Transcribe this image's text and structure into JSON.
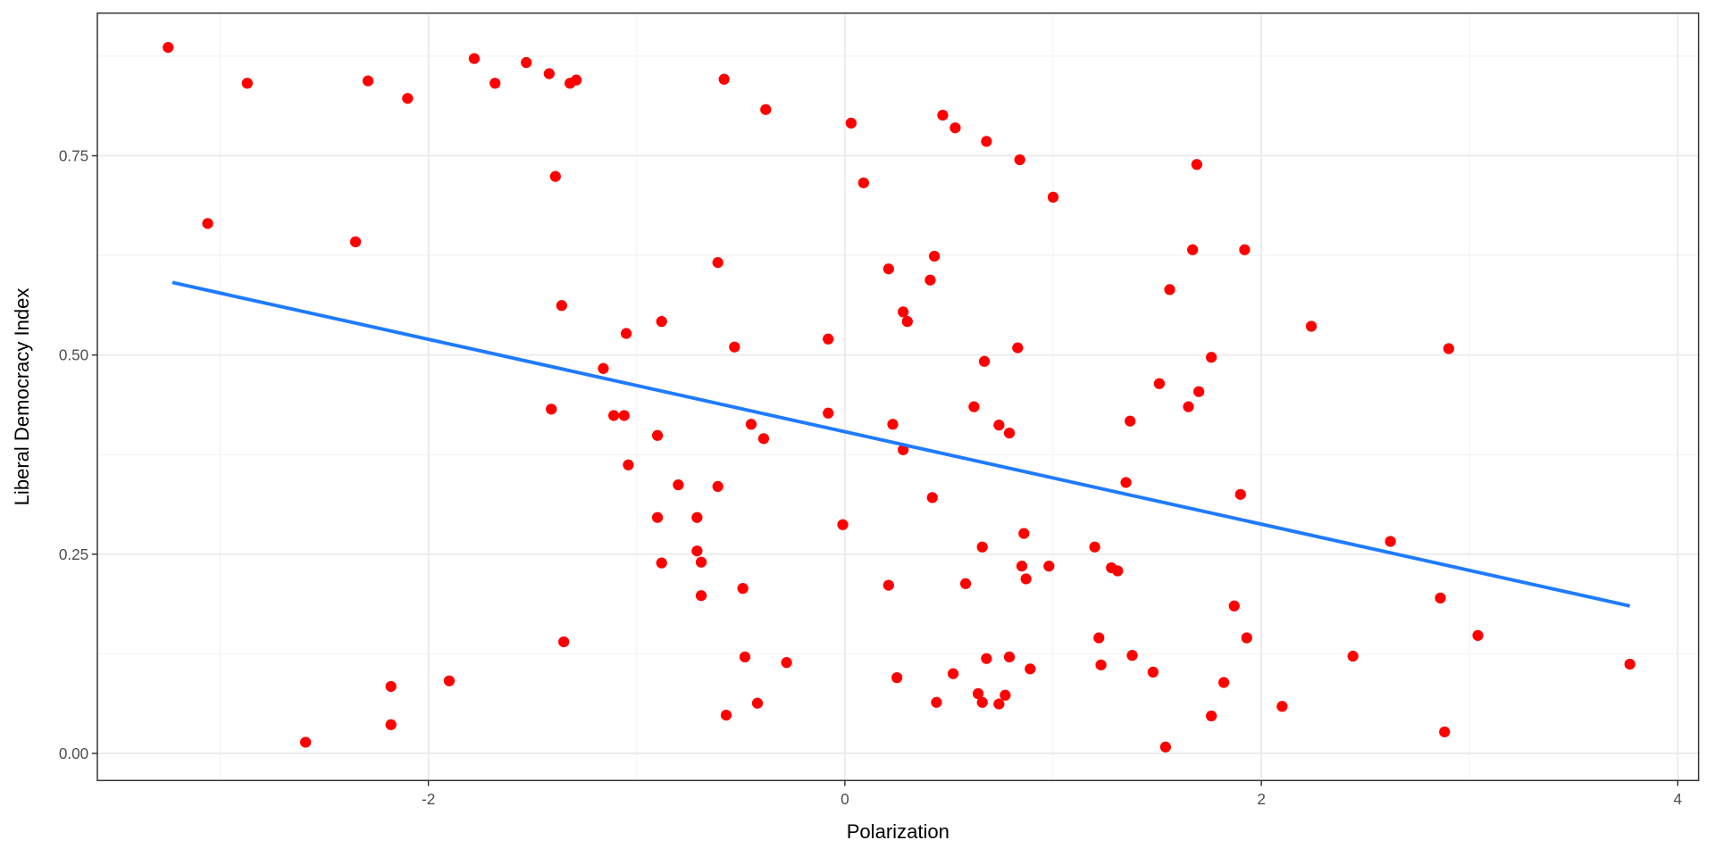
{
  "chart_data": {
    "type": "scatter",
    "title": "",
    "xlabel": "Polarization",
    "ylabel": "Liberal Democracy Index",
    "xlim": [
      -3.59,
      4.1
    ],
    "ylim": [
      -0.034,
      0.929
    ],
    "x_major_ticks": [
      -2,
      0,
      2,
      4
    ],
    "x_tick_labels": [
      "-2",
      "0",
      "2",
      "4"
    ],
    "x_minor_ticks": [
      -3,
      -1,
      1,
      3
    ],
    "y_major_ticks": [
      0,
      0.25,
      0.5,
      0.75
    ],
    "y_tick_labels": [
      "0.00",
      "0.25",
      "0.50",
      "0.75"
    ],
    "y_minor_ticks": [
      0.125,
      0.375,
      0.625,
      0.875
    ],
    "grid": true,
    "point_color": "#ff0000",
    "line_color": "#1f7bff",
    "fit_line": {
      "x": [
        -3.23,
        3.77
      ],
      "y": [
        0.591,
        0.185
      ]
    },
    "points": [
      [
        -3.25,
        0.886
      ],
      [
        -3.06,
        0.665
      ],
      [
        -2.87,
        0.841
      ],
      [
        -2.59,
        0.014
      ],
      [
        -2.35,
        0.642
      ],
      [
        -2.29,
        0.844
      ],
      [
        -2.18,
        0.084
      ],
      [
        -2.18,
        0.036
      ],
      [
        -2.1,
        0.822
      ],
      [
        -1.9,
        0.091
      ],
      [
        -1.78,
        0.872
      ],
      [
        -1.68,
        0.841
      ],
      [
        -1.53,
        0.867
      ],
      [
        -1.42,
        0.853
      ],
      [
        -1.39,
        0.724
      ],
      [
        -1.32,
        0.841
      ],
      [
        -1.29,
        0.845
      ],
      [
        -1.41,
        0.432
      ],
      [
        -1.36,
        0.562
      ],
      [
        -1.35,
        0.14
      ],
      [
        -1.16,
        0.483
      ],
      [
        -1.11,
        0.424
      ],
      [
        -1.06,
        0.424
      ],
      [
        -1.05,
        0.527
      ],
      [
        -1.04,
        0.362
      ],
      [
        -0.9,
        0.399
      ],
      [
        -0.9,
        0.296
      ],
      [
        -0.88,
        0.239
      ],
      [
        -0.88,
        0.542
      ],
      [
        -0.8,
        0.337
      ],
      [
        -0.71,
        0.296
      ],
      [
        -0.71,
        0.254
      ],
      [
        -0.69,
        0.24
      ],
      [
        -0.69,
        0.198
      ],
      [
        -0.61,
        0.616
      ],
      [
        -0.61,
        0.335
      ],
      [
        -0.58,
        0.846
      ],
      [
        -0.57,
        0.048
      ],
      [
        -0.53,
        0.51
      ],
      [
        -0.49,
        0.207
      ],
      [
        -0.48,
        0.121
      ],
      [
        -0.45,
        0.413
      ],
      [
        -0.42,
        0.063
      ],
      [
        -0.39,
        0.395
      ],
      [
        -0.38,
        0.808
      ],
      [
        -0.28,
        0.114
      ],
      [
        -0.08,
        0.52
      ],
      [
        -0.08,
        0.427
      ],
      [
        -0.01,
        0.287
      ],
      [
        0.03,
        0.791
      ],
      [
        0.09,
        0.716
      ],
      [
        0.21,
        0.608
      ],
      [
        0.21,
        0.211
      ],
      [
        0.23,
        0.413
      ],
      [
        0.25,
        0.095
      ],
      [
        0.28,
        0.381
      ],
      [
        0.28,
        0.554
      ],
      [
        0.3,
        0.542
      ],
      [
        0.41,
        0.594
      ],
      [
        0.43,
        0.624
      ],
      [
        0.42,
        0.321
      ],
      [
        0.44,
        0.064
      ],
      [
        0.47,
        0.801
      ],
      [
        0.52,
        0.1
      ],
      [
        0.53,
        0.785
      ],
      [
        0.58,
        0.213
      ],
      [
        0.62,
        0.435
      ],
      [
        0.64,
        0.075
      ],
      [
        0.66,
        0.259
      ],
      [
        0.66,
        0.064
      ],
      [
        0.67,
        0.492
      ],
      [
        0.68,
        0.119
      ],
      [
        0.68,
        0.768
      ],
      [
        0.74,
        0.412
      ],
      [
        0.74,
        0.062
      ],
      [
        0.77,
        0.073
      ],
      [
        0.79,
        0.121
      ],
      [
        0.79,
        0.402
      ],
      [
        0.83,
        0.509
      ],
      [
        0.84,
        0.745
      ],
      [
        0.85,
        0.235
      ],
      [
        0.86,
        0.276
      ],
      [
        0.87,
        0.219
      ],
      [
        0.89,
        0.106
      ],
      [
        0.98,
        0.235
      ],
      [
        1.0,
        0.698
      ],
      [
        1.23,
        0.111
      ],
      [
        1.28,
        0.233
      ],
      [
        1.31,
        0.229
      ],
      [
        1.2,
        0.259
      ],
      [
        1.22,
        0.145
      ],
      [
        1.35,
        0.34
      ],
      [
        1.37,
        0.417
      ],
      [
        1.38,
        0.123
      ],
      [
        1.48,
        0.102
      ],
      [
        1.51,
        0.464
      ],
      [
        1.54,
        0.008
      ],
      [
        1.56,
        0.582
      ],
      [
        1.65,
        0.435
      ],
      [
        1.67,
        0.632
      ],
      [
        1.69,
        0.739
      ],
      [
        1.7,
        0.454
      ],
      [
        1.76,
        0.047
      ],
      [
        1.76,
        0.497
      ],
      [
        1.82,
        0.089
      ],
      [
        1.87,
        0.185
      ],
      [
        1.9,
        0.325
      ],
      [
        1.92,
        0.632
      ],
      [
        1.93,
        0.145
      ],
      [
        2.1,
        0.059
      ],
      [
        2.24,
        0.536
      ],
      [
        2.44,
        0.122
      ],
      [
        2.62,
        0.266
      ],
      [
        2.86,
        0.195
      ],
      [
        2.88,
        0.027
      ],
      [
        2.9,
        0.508
      ],
      [
        3.04,
        0.148
      ],
      [
        3.77,
        0.112
      ]
    ]
  }
}
